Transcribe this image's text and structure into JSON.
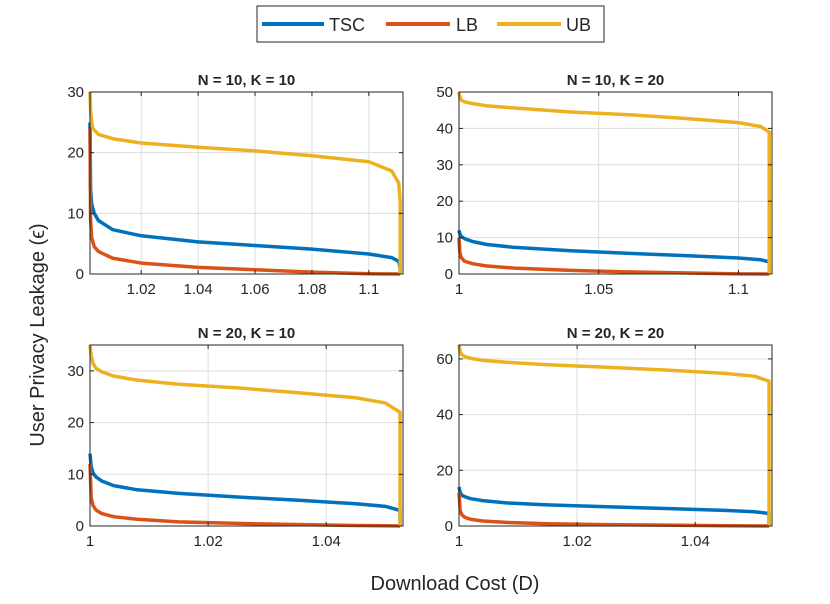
{
  "colors": {
    "TSC": "#0072BD",
    "LB": "#D95319",
    "UB": "#EDB120"
  },
  "legend": {
    "placement": "top-center",
    "entries": [
      "TSC",
      "LB",
      "UB"
    ]
  },
  "xlabel": "Download Cost (D)",
  "ylabel": "User Privacy Leakage (ϵ)",
  "chart_data": [
    {
      "type": "line",
      "title": "N = 10, K = 10",
      "xlim": [
        1.002,
        1.112
      ],
      "ylim": [
        0,
        30
      ],
      "xticks": [
        1.02,
        1.04,
        1.06,
        1.08,
        1.1
      ],
      "xtick_labels": [
        "1.02",
        "1.04",
        "1.06",
        "1.08",
        "1.1"
      ],
      "yticks": [
        0,
        10,
        20,
        30
      ],
      "ytick_labels": [
        "0",
        "10",
        "20",
        "30"
      ],
      "grid": true,
      "series": [
        {
          "name": "TSC",
          "x": [
            1.002,
            1.0022,
            1.0026,
            1.0035,
            1.005,
            1.01,
            1.02,
            1.04,
            1.06,
            1.08,
            1.1,
            1.108,
            1.1105,
            1.111,
            1.111
          ],
          "y": [
            25,
            14,
            11.5,
            10,
            8.8,
            7.3,
            6.3,
            5.3,
            4.7,
            4.1,
            3.3,
            2.7,
            2.1,
            1.0,
            0
          ]
        },
        {
          "name": "LB",
          "x": [
            1.002,
            1.0022,
            1.0026,
            1.0035,
            1.005,
            1.01,
            1.02,
            1.04,
            1.06,
            1.08,
            1.1,
            1.111
          ],
          "y": [
            24,
            9,
            6,
            4.5,
            3.7,
            2.6,
            1.8,
            1.1,
            0.7,
            0.3,
            0.05,
            0
          ]
        },
        {
          "name": "UB",
          "x": [
            1.002,
            1.0022,
            1.0026,
            1.003,
            1.005,
            1.01,
            1.02,
            1.04,
            1.06,
            1.08,
            1.1,
            1.108,
            1.1105,
            1.111,
            1.111
          ],
          "y": [
            30,
            27,
            25,
            24,
            23,
            22.3,
            21.6,
            20.9,
            20.3,
            19.5,
            18.5,
            17,
            15,
            12,
            0
          ]
        }
      ]
    },
    {
      "type": "line",
      "title": "N = 10, K = 20",
      "xlim": [
        1,
        1.112
      ],
      "ylim": [
        0,
        50
      ],
      "xticks": [
        1,
        1.05,
        1.1
      ],
      "xtick_labels": [
        "1",
        "1.05",
        "1.1"
      ],
      "yticks": [
        0,
        10,
        20,
        30,
        40,
        50
      ],
      "ytick_labels": [
        "0",
        "10",
        "20",
        "30",
        "40",
        "50"
      ],
      "grid": true,
      "series": [
        {
          "name": "TSC",
          "x": [
            1,
            1.0003,
            1.0008,
            1.002,
            1.005,
            1.01,
            1.02,
            1.04,
            1.06,
            1.08,
            1.1,
            1.108,
            1.111,
            1.111
          ],
          "y": [
            12,
            11,
            10.3,
            9.7,
            8.9,
            8.1,
            7.3,
            6.4,
            5.7,
            5.1,
            4.4,
            3.9,
            3.3,
            0
          ]
        },
        {
          "name": "LB",
          "x": [
            1,
            1.0003,
            1.0008,
            1.002,
            1.005,
            1.01,
            1.02,
            1.04,
            1.06,
            1.08,
            1.1,
            1.111
          ],
          "y": [
            10,
            6,
            4.5,
            3.5,
            2.8,
            2.2,
            1.6,
            1.0,
            0.6,
            0.3,
            0.05,
            0
          ]
        },
        {
          "name": "UB",
          "x": [
            1,
            1.0003,
            1.0008,
            1.002,
            1.005,
            1.01,
            1.02,
            1.04,
            1.06,
            1.08,
            1.1,
            1.108,
            1.111,
            1.111
          ],
          "y": [
            50,
            48.5,
            47.8,
            47.3,
            46.8,
            46.2,
            45.6,
            44.5,
            43.8,
            42.8,
            41.6,
            40.5,
            39,
            0
          ]
        }
      ]
    },
    {
      "type": "line",
      "title": "N = 20, K = 10",
      "xlim": [
        1,
        1.053
      ],
      "ylim": [
        0,
        35
      ],
      "xticks": [
        1,
        1.02,
        1.04
      ],
      "xtick_labels": [
        "1",
        "1.02",
        "1.04"
      ],
      "yticks": [
        0,
        10,
        20,
        30
      ],
      "ytick_labels": [
        "0",
        "10",
        "20",
        "30"
      ],
      "grid": true,
      "series": [
        {
          "name": "TSC",
          "x": [
            1,
            1.0002,
            1.0005,
            1.001,
            1.002,
            1.004,
            1.008,
            1.015,
            1.025,
            1.035,
            1.045,
            1.05,
            1.0525,
            1.0525
          ],
          "y": [
            14,
            11.5,
            10.3,
            9.5,
            8.7,
            7.8,
            7.0,
            6.3,
            5.6,
            5.0,
            4.3,
            3.8,
            3.0,
            0
          ]
        },
        {
          "name": "LB",
          "x": [
            1,
            1.0002,
            1.0005,
            1.001,
            1.002,
            1.004,
            1.008,
            1.015,
            1.025,
            1.035,
            1.045,
            1.0525
          ],
          "y": [
            12,
            5.5,
            4,
            3.1,
            2.4,
            1.8,
            1.3,
            0.8,
            0.5,
            0.3,
            0.1,
            0
          ]
        },
        {
          "name": "UB",
          "x": [
            1,
            1.0002,
            1.0005,
            1.001,
            1.002,
            1.004,
            1.008,
            1.015,
            1.025,
            1.035,
            1.045,
            1.05,
            1.0525,
            1.0525
          ],
          "y": [
            35,
            33,
            31.5,
            30.5,
            29.8,
            29.0,
            28.2,
            27.4,
            26.7,
            25.8,
            24.8,
            23.8,
            22,
            0
          ]
        }
      ]
    },
    {
      "type": "line",
      "title": "N = 20, K = 20",
      "xlim": [
        1,
        1.053
      ],
      "ylim": [
        0,
        65
      ],
      "xticks": [
        1,
        1.02,
        1.04
      ],
      "xtick_labels": [
        "1",
        "1.02",
        "1.04"
      ],
      "yticks": [
        0,
        20,
        40,
        60
      ],
      "ytick_labels": [
        "0",
        "20",
        "40",
        "60"
      ],
      "grid": true,
      "series": [
        {
          "name": "TSC",
          "x": [
            1,
            1.0002,
            1.0005,
            1.001,
            1.002,
            1.004,
            1.008,
            1.015,
            1.025,
            1.035,
            1.045,
            1.05,
            1.0525,
            1.0525
          ],
          "y": [
            14,
            12,
            11,
            10.5,
            9.8,
            9.1,
            8.3,
            7.6,
            6.9,
            6.3,
            5.6,
            5.1,
            4.5,
            0
          ]
        },
        {
          "name": "LB",
          "x": [
            1,
            1.0002,
            1.0005,
            1.001,
            1.002,
            1.004,
            1.008,
            1.015,
            1.025,
            1.035,
            1.045,
            1.0525
          ],
          "y": [
            12,
            5.5,
            4,
            3.1,
            2.4,
            1.8,
            1.3,
            0.8,
            0.5,
            0.3,
            0.1,
            0
          ]
        },
        {
          "name": "UB",
          "x": [
            1,
            1.0002,
            1.0005,
            1.001,
            1.002,
            1.004,
            1.008,
            1.015,
            1.025,
            1.035,
            1.045,
            1.05,
            1.0525,
            1.0525
          ],
          "y": [
            65,
            62.5,
            61.5,
            60.8,
            60.2,
            59.5,
            58.8,
            57.9,
            57.0,
            56.0,
            54.8,
            53.8,
            52,
            0
          ]
        }
      ]
    }
  ]
}
